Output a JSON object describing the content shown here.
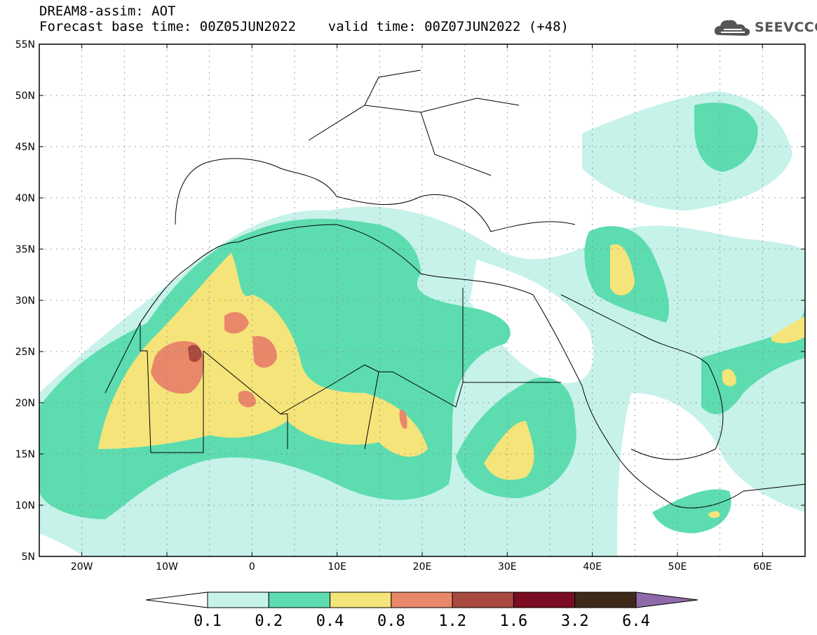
{
  "header": {
    "title_line1": "DREAM8-assim: AOT",
    "title_line2": "Forecast base time: 00Z05JUN2022    valid time: 00Z07JUN2022 (+48)"
  },
  "logo": {
    "text": "SEEVCCC",
    "icon": "cloud-icon"
  },
  "map": {
    "lat_ticks": [
      "55N",
      "50N",
      "45N",
      "40N",
      "35N",
      "30N",
      "25N",
      "20N",
      "15N",
      "10N",
      "5N"
    ],
    "lon_ticks": [
      "20W",
      "10W",
      "0",
      "10E",
      "20E",
      "30E",
      "40E",
      "50E",
      "60E"
    ]
  },
  "colorbar": {
    "labels": [
      "0.1",
      "0.2",
      "0.4",
      "0.8",
      "1.2",
      "1.6",
      "3.2",
      "6.4"
    ],
    "colors": [
      "#ffffff",
      "#c6f2ea",
      "#5ddcb0",
      "#f5e47a",
      "#e9876a",
      "#a84a3f",
      "#7a0d22",
      "#3f2a1a",
      "#8f6aa8"
    ]
  }
}
